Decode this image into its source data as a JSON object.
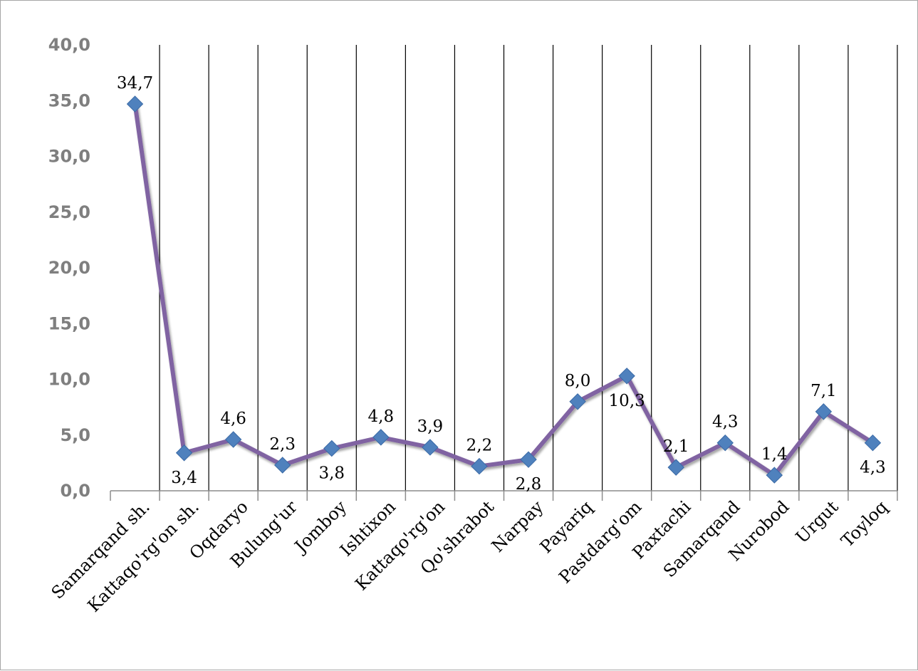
{
  "chart_data": {
    "type": "line",
    "categories": [
      "Samarqand sh.",
      "Kattaqo'rg'on sh.",
      "Oqdaryo",
      "Bulung'ur",
      "Jomboy",
      "Ishtixon",
      "Kattaqo'rg'on",
      "Qo'shrabot",
      "Narpay",
      "Payariq",
      "Pastdarg'om",
      "Paxtachi",
      "Samarqand",
      "Nurobod",
      "Urgut",
      "Toyloq"
    ],
    "values": [
      34.7,
      3.4,
      4.6,
      2.3,
      3.8,
      4.8,
      3.9,
      2.2,
      2.8,
      8.0,
      10.3,
      2.1,
      4.3,
      1.4,
      7.1,
      4.3
    ],
    "data_labels": [
      "34,7",
      "3,4",
      "4,6",
      "2,3",
      "3,8",
      "4,8",
      "3,9",
      "2,2",
      "2,8",
      "8,0",
      "10,3",
      "2,1",
      "4,3",
      "1,4",
      "7,1",
      "4,3"
    ],
    "label_position": [
      "above",
      "below",
      "above",
      "above",
      "below",
      "above",
      "above",
      "above",
      "below",
      "above",
      "below",
      "above",
      "above",
      "above",
      "above",
      "below"
    ],
    "yticks": [
      "0,0",
      "5,0",
      "10,0",
      "15,0",
      "20,0",
      "25,0",
      "30,0",
      "35,0",
      "40,0"
    ],
    "ylim": [
      0,
      40
    ],
    "grid": "vertical",
    "line_color": "#8064a2",
    "marker_color": "#4f81bd",
    "marker": "diamond",
    "title": "",
    "xlabel": "",
    "ylabel": ""
  }
}
